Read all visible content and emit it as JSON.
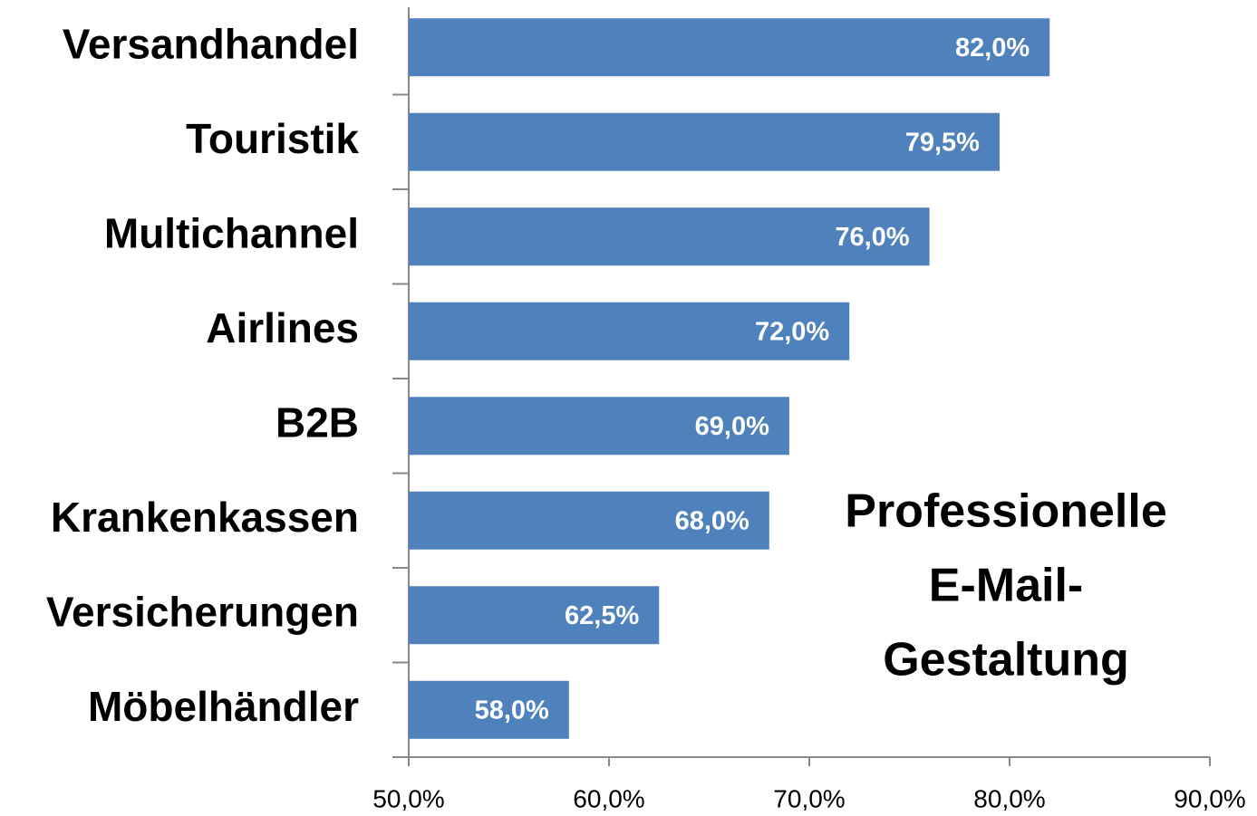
{
  "chart_data": {
    "type": "hbar",
    "annotation": [
      "Professionelle",
      "E-Mail-",
      "Gestaltung"
    ],
    "categories": [
      "Versandhandel",
      "Touristik",
      "Multichannel",
      "Airlines",
      "B2B",
      "Krankenkassen",
      "Versicherungen",
      "Möbelhändler"
    ],
    "values": [
      82.0,
      79.5,
      76.0,
      72.0,
      69.0,
      68.0,
      62.5,
      58.0
    ],
    "value_labels": [
      "82,0%",
      "79,5%",
      "76,0%",
      "72,0%",
      "69,0%",
      "68,0%",
      "62,5%",
      "58,0%"
    ],
    "color": "#4f81bd",
    "xlim": [
      50,
      90
    ],
    "xticks": [
      {
        "value": 50,
        "label": "50,0%"
      },
      {
        "value": 60,
        "label": "60,0%"
      },
      {
        "value": 70,
        "label": "70,0%"
      },
      {
        "value": 80,
        "label": "80,0%"
      },
      {
        "value": 90,
        "label": "90,0%"
      }
    ]
  }
}
